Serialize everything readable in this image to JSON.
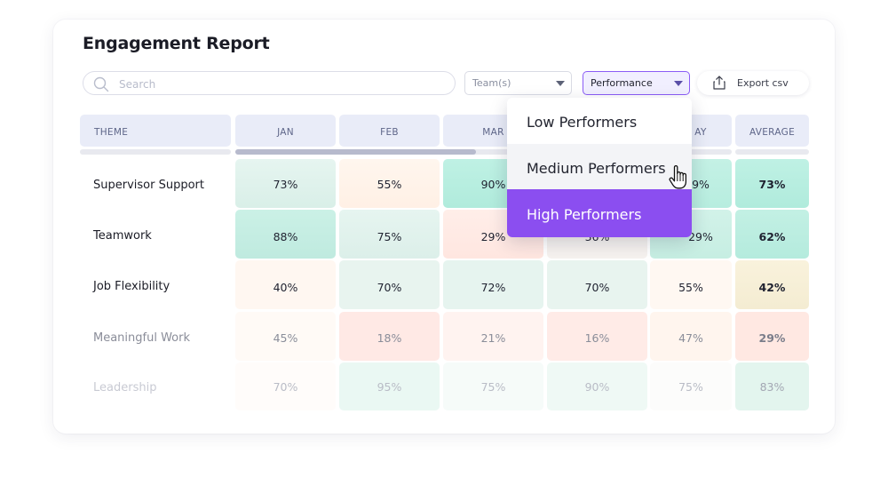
{
  "title": "Engagement Report",
  "search": {
    "placeholder": "Search"
  },
  "filters": {
    "team": "Team(s)",
    "performance": "Performance",
    "export_label": "Export csv"
  },
  "columns": [
    "THEME",
    "JAN",
    "FEB",
    "MAR",
    "",
    "AY",
    "AVERAGE"
  ],
  "dropdown": {
    "options": [
      "Low Performers",
      "Medium Performers",
      "High Performers"
    ],
    "hovered": "Medium Performers",
    "selected": "High Performers"
  },
  "rows": [
    {
      "label": "Supervisor Support",
      "values": [
        "73%",
        "55%",
        "90%",
        "",
        "9%",
        "73%"
      ]
    },
    {
      "label": "Teamwork",
      "values": [
        "88%",
        "75%",
        "29%",
        "36%",
        "29%",
        "62%"
      ]
    },
    {
      "label": "Job Flexibility",
      "values": [
        "40%",
        "70%",
        "72%",
        "70%",
        "55%",
        "42%"
      ]
    },
    {
      "label": "Meaningful Work",
      "values": [
        "45%",
        "18%",
        "21%",
        "16%",
        "47%",
        "29%"
      ]
    },
    {
      "label": "Leadership",
      "values": [
        "70%",
        "95%",
        "75%",
        "90%",
        "75%",
        "83%"
      ]
    }
  ],
  "colors": {
    "accent": "#8b4ef0",
    "green_strong": "#b5efe0",
    "green_light": "#e0f3ee",
    "peach": "#fff2e8",
    "pink": "#ffe3df",
    "yellow": "#f7f0d6"
  },
  "icons": [
    "search-icon",
    "caret-down-icon",
    "export-icon",
    "hand-cursor-icon"
  ]
}
